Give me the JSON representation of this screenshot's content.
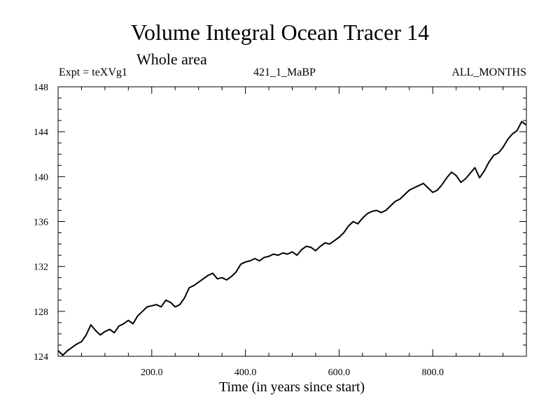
{
  "chart_data": {
    "type": "line",
    "title": "Volume Integral Ocean Tracer 14",
    "subtitle": "Whole area",
    "experiment_label": "Expt = teXVg1",
    "run_label": "421_1_MaBP",
    "months_label": "ALL_MONTHS",
    "xlabel": "Time (in years since start)",
    "ylabel": "",
    "xlim": [
      0,
      1000
    ],
    "ylim": [
      124,
      148
    ],
    "x_tick_labels": [
      "200.0",
      "400.0",
      "600.0",
      "800.0"
    ],
    "y_tick_labels": [
      "124",
      "128",
      "132",
      "136",
      "140",
      "144",
      "148"
    ],
    "series": [
      {
        "name": "Volume Integral Ocean Tracer 14",
        "x": [
          0,
          10,
          20,
          30,
          40,
          50,
          60,
          70,
          80,
          90,
          100,
          110,
          120,
          130,
          140,
          150,
          160,
          170,
          180,
          190,
          200,
          210,
          220,
          230,
          240,
          250,
          260,
          270,
          280,
          290,
          300,
          310,
          320,
          330,
          340,
          350,
          360,
          370,
          380,
          390,
          400,
          410,
          420,
          430,
          440,
          450,
          460,
          470,
          480,
          490,
          500,
          510,
          520,
          530,
          540,
          550,
          560,
          570,
          580,
          590,
          600,
          610,
          620,
          630,
          640,
          650,
          660,
          670,
          680,
          690,
          700,
          710,
          720,
          730,
          740,
          750,
          760,
          770,
          780,
          790,
          800,
          810,
          820,
          830,
          840,
          850,
          860,
          870,
          880,
          890,
          900,
          910,
          920,
          930,
          940,
          950,
          960,
          970,
          980,
          990,
          1000
        ],
        "y": [
          124.5,
          124.1,
          124.5,
          124.8,
          125.1,
          125.3,
          125.9,
          126.8,
          126.3,
          125.9,
          126.2,
          126.4,
          126.1,
          126.7,
          126.9,
          127.2,
          126.9,
          127.6,
          128.0,
          128.4,
          128.5,
          128.6,
          128.4,
          129.0,
          128.8,
          128.4,
          128.6,
          129.2,
          130.1,
          130.3,
          130.6,
          130.9,
          131.2,
          131.4,
          130.9,
          131.0,
          130.8,
          131.1,
          131.5,
          132.2,
          132.4,
          132.5,
          132.7,
          132.5,
          132.8,
          132.9,
          133.1,
          133.0,
          133.2,
          133.1,
          133.3,
          133.0,
          133.5,
          133.8,
          133.7,
          133.4,
          133.8,
          134.1,
          134.0,
          134.3,
          134.6,
          135.0,
          135.6,
          136.0,
          135.8,
          136.3,
          136.7,
          136.9,
          137.0,
          136.8,
          137.0,
          137.4,
          137.8,
          138.0,
          138.4,
          138.8,
          139.0,
          139.2,
          139.4,
          139.0,
          138.6,
          138.8,
          139.3,
          139.9,
          140.4,
          140.1,
          139.5,
          139.8,
          140.3,
          140.8,
          139.9,
          140.5,
          141.3,
          141.9,
          142.1,
          142.6,
          143.3,
          143.8,
          144.1,
          144.9,
          144.6
        ]
      }
    ]
  }
}
